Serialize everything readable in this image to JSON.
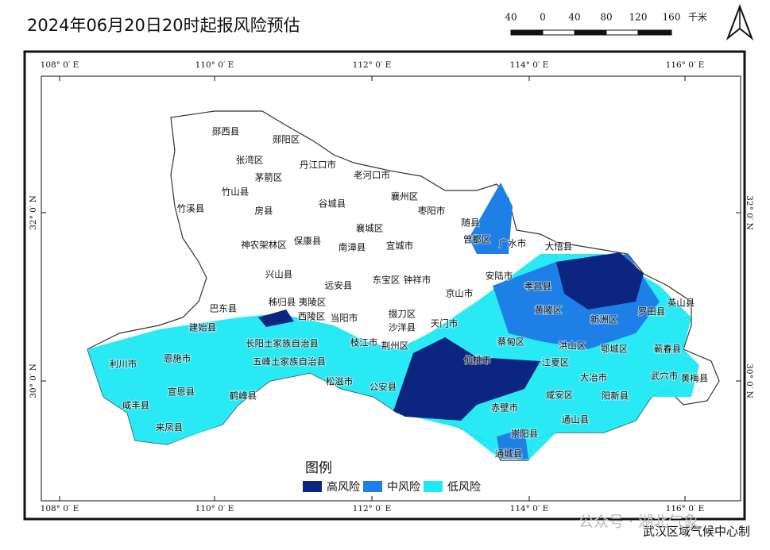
{
  "title": "2024年06月20日20时起报风险预估",
  "scale_bar": {
    "labels": [
      "40",
      "0",
      "40",
      "80",
      "120",
      "160"
    ],
    "unit": "千米"
  },
  "graticule": {
    "longitudes": [
      "108° 0′ E",
      "110° 0′ E",
      "112° 0′ E",
      "114° 0′ E",
      "116° 0′ E"
    ],
    "latitudes": [
      "32° 0′ N",
      "30° 0′ N"
    ]
  },
  "places": [
    "郧西县",
    "郧阳区",
    "张湾区",
    "丹江口市",
    "老河口市",
    "茅箭区",
    "竹山县",
    "襄州区",
    "谷城县",
    "竹溪县",
    "房县",
    "枣阳市",
    "随县",
    "襄城区",
    "曾都区",
    "广水市",
    "大悟县",
    "神农架林区",
    "保康县",
    "南漳县",
    "宜城市",
    "兴山县",
    "东宝区",
    "钟祥市",
    "安陆市",
    "孝昌县",
    "远安县",
    "京山市",
    "巴东县",
    "秭归县",
    "夷陵区",
    "西陵区",
    "当阳市",
    "掇刀区",
    "黄陂区",
    "罗田县",
    "英山县",
    "建始县",
    "沙洋县",
    "天门市",
    "新洲区",
    "长阳土家族自治县",
    "枝江市",
    "荆州区",
    "蔡甸区",
    "洪山区",
    "鄂城区",
    "蕲春县",
    "恩施市",
    "利川市",
    "五峰土家族自治县",
    "仙桃市",
    "江夏区",
    "松滋市",
    "公安县",
    "大冶市",
    "武穴市",
    "黄梅县",
    "宣恩县",
    "鹤峰县",
    "咸安区",
    "阳新县",
    "咸丰县",
    "赤壁市",
    "通山县",
    "来凤县",
    "崇阳县",
    "通城县"
  ],
  "legend": {
    "title": "图例",
    "items": [
      {
        "label": "高风险",
        "color": "#0b2580"
      },
      {
        "label": "中风险",
        "color": "#1e80e6"
      },
      {
        "label": "低风险",
        "color": "#1ee8f4"
      }
    ]
  },
  "credit": "武汉区域气候中心制",
  "watermark": "公众号 · 湖北气象"
}
